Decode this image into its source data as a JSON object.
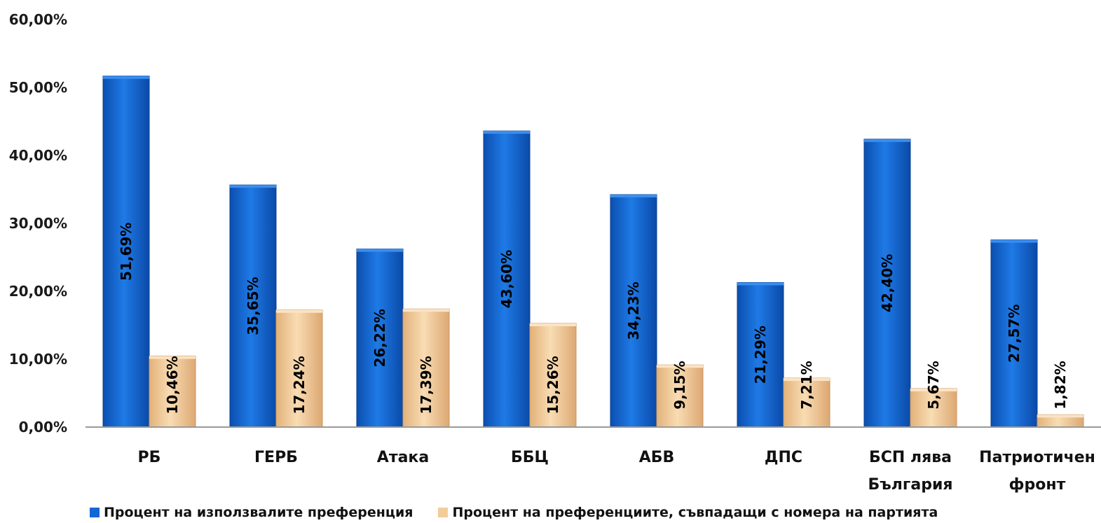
{
  "chart_data": {
    "type": "bar",
    "categories": [
      "РБ",
      "ГЕРБ",
      "Атака",
      "ББЦ",
      "АБВ",
      "ДПС",
      "БСП лява\nБългария",
      "Патриотичен\nфронт"
    ],
    "series": [
      {
        "name": "Процент на използвалите преференция",
        "color": "#1467d4",
        "values": [
          51.69,
          35.65,
          26.22,
          43.6,
          34.23,
          21.29,
          42.4,
          27.57
        ],
        "labels": [
          "51,69%",
          "35,65%",
          "26,22%",
          "43,60%",
          "34,23%",
          "21,29%",
          "42,40%",
          "27,57%"
        ]
      },
      {
        "name": "Процент на преференциите, съвпадащи с номера на партията",
        "color": "#f3cc99",
        "values": [
          10.46,
          17.24,
          17.39,
          15.26,
          9.15,
          7.21,
          5.67,
          1.82
        ],
        "labels": [
          "10,46%",
          "17,24%",
          "17,39%",
          "15,26%",
          "9,15%",
          "7,21%",
          "5,67%",
          "1,82%"
        ]
      }
    ],
    "ylim": [
      0,
      60
    ],
    "yticks": [
      0,
      10,
      20,
      30,
      40,
      50,
      60
    ],
    "ytick_labels": [
      "0,00%",
      "10,00%",
      "20,00%",
      "30,00%",
      "40,00%",
      "50,00%",
      "60,00%"
    ],
    "title": "",
    "xlabel": "",
    "ylabel": "",
    "grid": false,
    "legend_position": "bottom"
  }
}
